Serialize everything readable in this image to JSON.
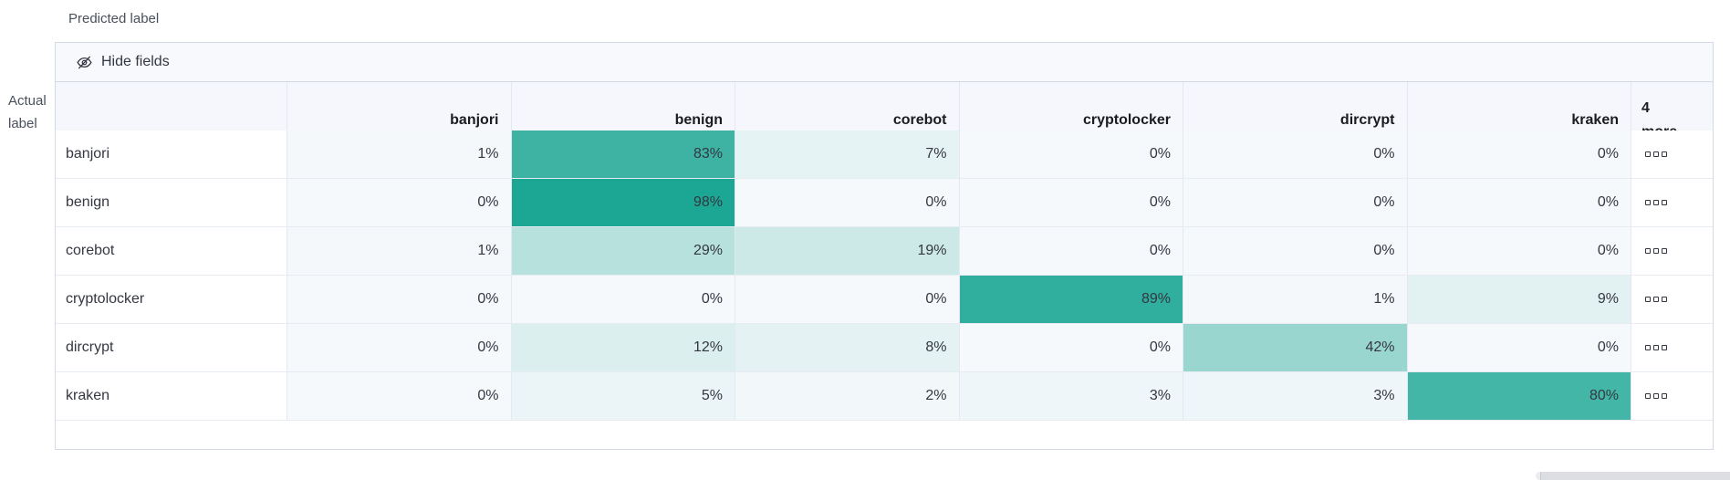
{
  "axis": {
    "predicted": "Predicted label",
    "actual_line1": "Actual",
    "actual_line2": "label"
  },
  "toolbar": {
    "hide_fields_label": "Hide fields"
  },
  "grid": {
    "columns": [
      "banjori",
      "benign",
      "corebot",
      "cryptolocker",
      "dircrypt",
      "kraken"
    ],
    "more_header": {
      "count": "4",
      "word": "more"
    },
    "rows": [
      {
        "label": "banjori",
        "cells": [
          "1%",
          "83%",
          "7%",
          "0%",
          "0%",
          "0%"
        ]
      },
      {
        "label": "benign",
        "cells": [
          "0%",
          "98%",
          "0%",
          "0%",
          "0%",
          "0%"
        ]
      },
      {
        "label": "corebot",
        "cells": [
          "1%",
          "29%",
          "19%",
          "0%",
          "0%",
          "0%"
        ]
      },
      {
        "label": "cryptolocker",
        "cells": [
          "0%",
          "0%",
          "0%",
          "89%",
          "1%",
          "9%"
        ]
      },
      {
        "label": "dircrypt",
        "cells": [
          "0%",
          "12%",
          "8%",
          "0%",
          "42%",
          "0%"
        ]
      },
      {
        "label": "kraken",
        "cells": [
          "0%",
          "5%",
          "2%",
          "3%",
          "3%",
          "80%"
        ]
      }
    ]
  },
  "colors": {
    "heat_min": "#f6f9fc",
    "heat_max": "#18a592",
    "border": "#d3dae6",
    "header_bg": "#f5f7fc",
    "toolbar_bg": "#f8f9fc",
    "text": "#343741"
  },
  "chart_data": {
    "type": "heatmap",
    "xlabel": "Predicted label",
    "ylabel": "Actual label",
    "x_categories": [
      "banjori",
      "benign",
      "corebot",
      "cryptolocker",
      "dircrypt",
      "kraken"
    ],
    "y_categories": [
      "banjori",
      "benign",
      "corebot",
      "cryptolocker",
      "dircrypt",
      "kraken"
    ],
    "matrix_percent": [
      [
        1,
        83,
        7,
        0,
        0,
        0
      ],
      [
        0,
        98,
        0,
        0,
        0,
        0
      ],
      [
        1,
        29,
        19,
        0,
        0,
        0
      ],
      [
        0,
        0,
        0,
        89,
        1,
        9
      ],
      [
        0,
        12,
        8,
        0,
        42,
        0
      ],
      [
        0,
        5,
        2,
        3,
        3,
        80
      ]
    ],
    "hidden_columns_count": 4,
    "color_scale": {
      "min": "#f6f9fc",
      "max": "#18a592"
    },
    "legend_position": "none",
    "grid_lines": true
  }
}
